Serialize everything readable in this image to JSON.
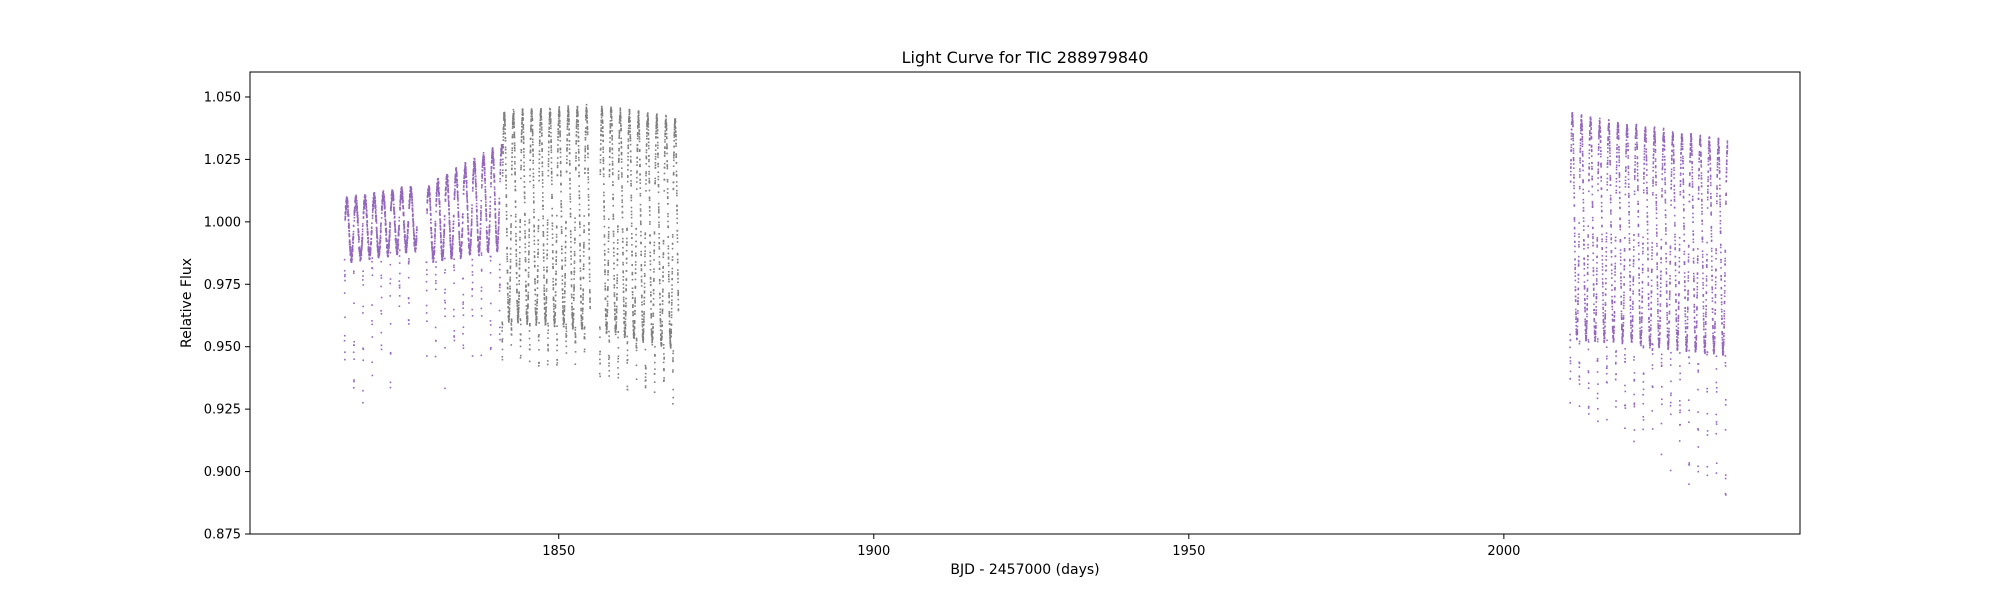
{
  "chart_data": {
    "type": "scatter",
    "title": "Light Curve for TIC 288979840",
    "xlabel": "BJD - 2457000 (days)",
    "ylabel": "Relative Flux",
    "xlim": [
      1801,
      2047
    ],
    "ylim": [
      0.875,
      1.06
    ],
    "x_ticks": [
      1850,
      1900,
      1950,
      2000
    ],
    "x_tick_labels": [
      "1850",
      "1900",
      "1950",
      "2000"
    ],
    "y_ticks": [
      0.875,
      0.9,
      0.925,
      0.95,
      0.975,
      1.0,
      1.025,
      1.05
    ],
    "y_tick_labels": [
      "0.875",
      "0.900",
      "0.925",
      "0.950",
      "0.975",
      "1.000",
      "1.025",
      "1.050"
    ],
    "grid": false,
    "series": [
      {
        "color": "#9467bd",
        "segments": [
          {
            "x_start": 1816.0,
            "x_end": 1827.5,
            "period": 1.45,
            "flux_upper": [
              1.008,
              1.013
            ],
            "flux_lower": [
              0.985,
              0.99
            ],
            "dip_min": [
              0.921,
              0.93
            ]
          },
          {
            "x_start": 1829.0,
            "x_end": 1841.0,
            "period": 1.45,
            "flux_upper": [
              1.013,
              1.03
            ],
            "flux_lower": [
              0.985,
              0.99
            ],
            "dip_min": [
              0.928,
              0.94
            ]
          },
          {
            "x_start": 2010.5,
            "x_end": 2035.5,
            "period": 1.45,
            "flux_upper": [
              1.042,
              1.031
            ],
            "flux_lower": [
              0.955,
              0.948
            ],
            "dip_min": [
              0.925,
              0.884
            ]
          }
        ]
      },
      {
        "color": "#7f7f7f",
        "segments": [
          {
            "x_start": 1841.0,
            "x_end": 1855.0,
            "period": 1.45,
            "flux_upper": [
              1.043,
              1.045
            ],
            "flux_lower": [
              0.962,
              0.958
            ],
            "dip_min": [
              0.942,
              0.94
            ]
          },
          {
            "x_start": 1856.5,
            "x_end": 1869.0,
            "period": 1.45,
            "flux_upper": [
              1.045,
              1.04
            ],
            "flux_lower": [
              0.958,
              0.95
            ],
            "dip_min": [
              0.935,
              0.924
            ]
          }
        ]
      }
    ]
  }
}
